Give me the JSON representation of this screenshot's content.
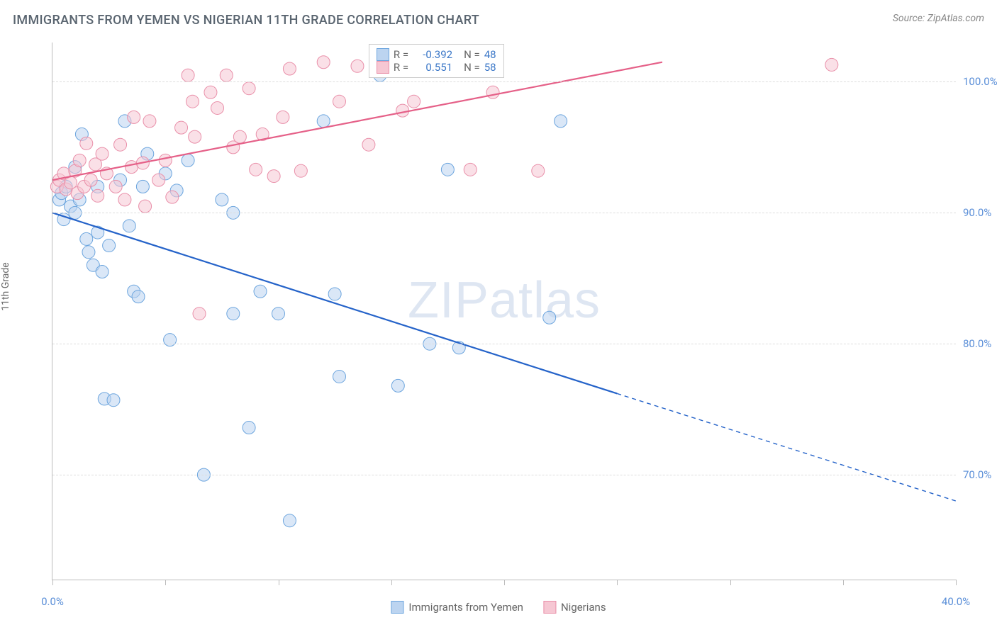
{
  "title": "IMMIGRANTS FROM YEMEN VS NIGERIAN 11TH GRADE CORRELATION CHART",
  "source": "Source: ZipAtlas.com",
  "ylabel": "11th Grade",
  "watermark": "ZIPatlas",
  "chart": {
    "type": "scatter-with-regression",
    "xlim": [
      0,
      40
    ],
    "ylim": [
      62,
      103
    ],
    "x_ticks": [
      0,
      5,
      10,
      15,
      20,
      25,
      30,
      35,
      40
    ],
    "x_tick_labels": {
      "0": "0.0%",
      "40": "40.0%"
    },
    "y_gridlines": [
      70,
      80,
      90,
      100
    ],
    "y_tick_labels": {
      "70": "70.0%",
      "80": "80.0%",
      "90": "90.0%",
      "100": "100.0%"
    },
    "marker_radius": 9,
    "marker_opacity": 0.55,
    "line_width_solid": 2.2,
    "line_width_dashed": 1.4,
    "background_color": "#ffffff",
    "grid_color": "#dddddd",
    "axis_color": "#bbbbbb"
  },
  "series": [
    {
      "id": "yemen",
      "name": "Immigrants from Yemen",
      "color_fill": "#bcd4f0",
      "color_stroke": "#6ca5de",
      "line_color": "#2563c9",
      "R": "-0.392",
      "N": "48",
      "regression": {
        "x1": 0,
        "y1": 90,
        "x2": 25,
        "y2": 76.2,
        "x3": 40,
        "y3": 68
      },
      "points": [
        [
          0.3,
          91
        ],
        [
          0.4,
          91.5
        ],
        [
          0.6,
          92
        ],
        [
          0.8,
          90.5
        ],
        [
          0.5,
          89.5
        ],
        [
          1.0,
          90
        ],
        [
          1.2,
          91
        ],
        [
          1.0,
          93.5
        ],
        [
          1.3,
          96
        ],
        [
          1.5,
          88
        ],
        [
          1.6,
          87
        ],
        [
          2.0,
          92
        ],
        [
          2.0,
          88.5
        ],
        [
          1.8,
          86
        ],
        [
          2.2,
          85.5
        ],
        [
          2.5,
          87.5
        ],
        [
          2.3,
          75.8
        ],
        [
          2.7,
          75.7
        ],
        [
          3.0,
          92.5
        ],
        [
          3.2,
          97
        ],
        [
          3.4,
          89
        ],
        [
          3.6,
          84
        ],
        [
          3.8,
          83.6
        ],
        [
          4.0,
          92
        ],
        [
          4.2,
          94.5
        ],
        [
          5.0,
          93
        ],
        [
          5.5,
          91.7
        ],
        [
          5.2,
          80.3
        ],
        [
          6.0,
          94
        ],
        [
          6.7,
          70
        ],
        [
          7.5,
          91
        ],
        [
          8.0,
          82.3
        ],
        [
          8.7,
          73.6
        ],
        [
          8.0,
          90
        ],
        [
          9.2,
          84
        ],
        [
          10.0,
          82.3
        ],
        [
          10.5,
          66.5
        ],
        [
          12.0,
          97
        ],
        [
          12.5,
          83.8
        ],
        [
          12.7,
          77.5
        ],
        [
          14.5,
          100.5
        ],
        [
          15.3,
          76.8
        ],
        [
          16.7,
          80
        ],
        [
          17.5,
          93.3
        ],
        [
          18.0,
          79.7
        ],
        [
          22.0,
          82
        ],
        [
          22.5,
          97
        ]
      ]
    },
    {
      "id": "nigerian",
      "name": "Nigerians",
      "color_fill": "#f6c7d3",
      "color_stroke": "#e98fa9",
      "line_color": "#e56088",
      "R": "0.551",
      "N": "58",
      "regression": {
        "x1": 0,
        "y1": 92.5,
        "x2": 27,
        "y2": 101.5
      },
      "points": [
        [
          0.2,
          92
        ],
        [
          0.3,
          92.5
        ],
        [
          0.5,
          93
        ],
        [
          0.6,
          91.8
        ],
        [
          0.8,
          92.3
        ],
        [
          1.0,
          93.2
        ],
        [
          1.1,
          91.5
        ],
        [
          1.2,
          94
        ],
        [
          1.4,
          92
        ],
        [
          1.5,
          95.3
        ],
        [
          1.7,
          92.5
        ],
        [
          1.9,
          93.7
        ],
        [
          2.0,
          91.3
        ],
        [
          2.2,
          94.5
        ],
        [
          2.4,
          93
        ],
        [
          2.8,
          92
        ],
        [
          3.0,
          95.2
        ],
        [
          3.2,
          91
        ],
        [
          3.5,
          93.5
        ],
        [
          3.6,
          97.3
        ],
        [
          4.0,
          93.8
        ],
        [
          4.1,
          90.5
        ],
        [
          4.3,
          97
        ],
        [
          4.7,
          92.5
        ],
        [
          5.0,
          94
        ],
        [
          5.3,
          91.2
        ],
        [
          5.7,
          96.5
        ],
        [
          6.0,
          100.5
        ],
        [
          6.2,
          98.5
        ],
        [
          6.3,
          95.8
        ],
        [
          6.5,
          82.3
        ],
        [
          7.0,
          99.2
        ],
        [
          7.3,
          98
        ],
        [
          7.7,
          100.5
        ],
        [
          8.0,
          95
        ],
        [
          8.3,
          95.8
        ],
        [
          8.7,
          99.5
        ],
        [
          9.0,
          93.3
        ],
        [
          9.3,
          96
        ],
        [
          9.8,
          92.8
        ],
        [
          10.2,
          97.3
        ],
        [
          10.5,
          101
        ],
        [
          11.0,
          93.2
        ],
        [
          12.0,
          101.5
        ],
        [
          12.7,
          98.5
        ],
        [
          13.5,
          101.2
        ],
        [
          14.0,
          95.2
        ],
        [
          15.5,
          97.8
        ],
        [
          16.0,
          98.5
        ],
        [
          17.0,
          101.5
        ],
        [
          18.5,
          93.3
        ],
        [
          19.5,
          99.2
        ],
        [
          21.5,
          93.2
        ],
        [
          34.5,
          101.3
        ]
      ]
    }
  ],
  "legend_box": {
    "R_label": "R =",
    "N_label": "N ="
  },
  "bottom_legend": [
    {
      "swatch_fill": "#bcd4f0",
      "swatch_stroke": "#6ca5de",
      "label": "Immigrants from Yemen"
    },
    {
      "swatch_fill": "#f6c7d3",
      "swatch_stroke": "#e98fa9",
      "label": "Nigerians"
    }
  ]
}
